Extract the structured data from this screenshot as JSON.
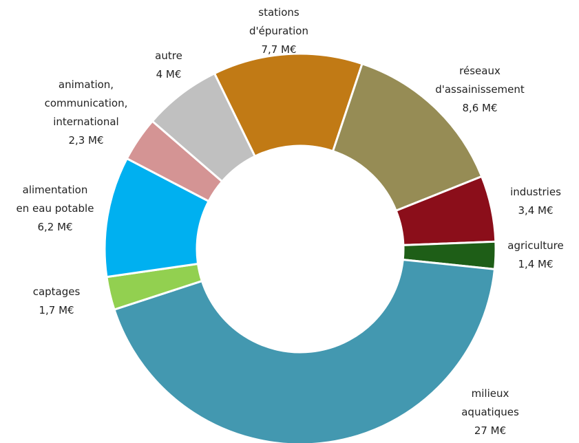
{
  "chart_data": {
    "type": "donut",
    "categories": [
      "stations\nd'épuration",
      "réseaux\nd'assainissement",
      "industries",
      "agriculture",
      "milieux\naquatiques",
      "captages",
      "alimentation\nen eau potable",
      "animation,\ncommunication,\ninternational",
      "autre"
    ],
    "values": [
      7.7,
      8.6,
      3.4,
      1.4,
      27,
      1.7,
      6.2,
      2.3,
      4
    ],
    "value_labels": [
      "7,7 M€",
      "8,6 M€",
      "3,4 M€",
      "1,4 M€",
      "27 M€",
      "1,7 M€",
      "6,2 M€",
      "2,3 M€",
      "4 M€"
    ],
    "colors": [
      "#C17A15",
      "#968C55",
      "#8B0E1A",
      "#1E5E17",
      "#4398B0",
      "#92D050",
      "#00B0F0",
      "#D49494",
      "#C0C0C0"
    ]
  }
}
